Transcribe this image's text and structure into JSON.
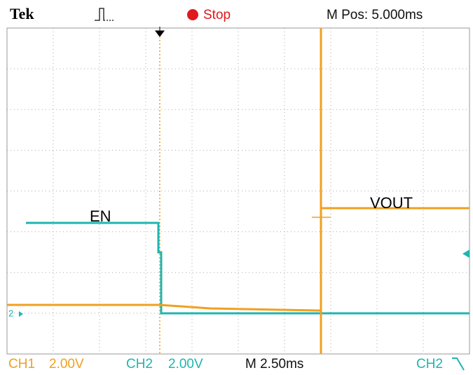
{
  "header": {
    "brand": "Tek",
    "status": "Stop",
    "position": "M Pos: 5.000ms"
  },
  "traces": {
    "en": "EN",
    "vout": "VOUT",
    "ch2_marker": "2"
  },
  "footer": {
    "ch1": "CH1",
    "ch1_scale": "2.00V",
    "ch2": "CH2",
    "ch2_scale": "2.00V",
    "timebase": "M 2.50ms",
    "trigger_source": "CH2"
  }
}
